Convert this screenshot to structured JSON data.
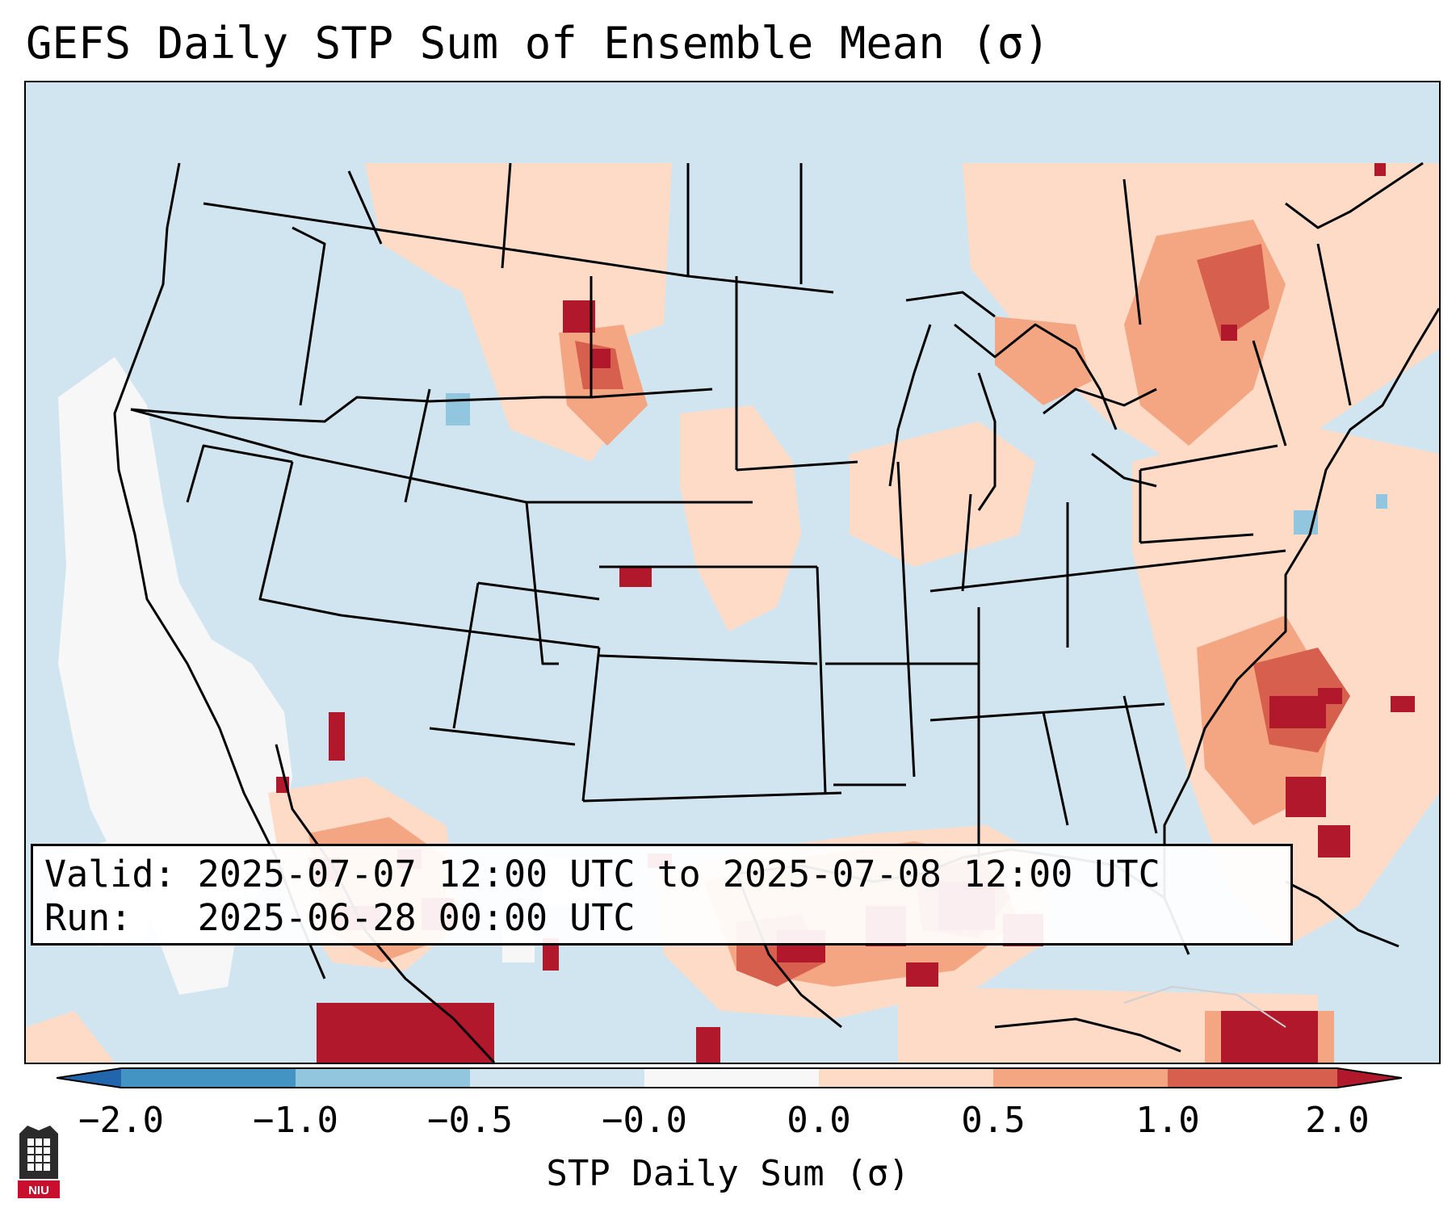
{
  "title": "GEFS Daily STP Sum of Ensemble Mean (σ)",
  "info": {
    "valid_line": "Valid: 2025-07-07 12:00 UTC to 2025-07-08 12:00 UTC",
    "run_line": "Run:   2025-06-28 00:00 UTC"
  },
  "colorbar": {
    "label": "STP Daily Sum (σ)",
    "ticks": [
      "−2.0",
      "−1.0",
      "−0.5",
      "−0.0",
      "0.0",
      "0.5",
      "1.0",
      "2.0"
    ],
    "bins": [
      {
        "range": "-2.0 to -1.0",
        "color": "#4393c3"
      },
      {
        "range": "-1.0 to -0.5",
        "color": "#92c5de"
      },
      {
        "range": "-0.5 to -0.0",
        "color": "#d1e5f0"
      },
      {
        "range": "-0.0 to 0.0",
        "color": "#f7f7f7"
      },
      {
        "range": "0.0 to 0.5",
        "color": "#fddbc7"
      },
      {
        "range": "0.5 to 1.0",
        "color": "#f4a582"
      },
      {
        "range": "1.0 to 2.0",
        "color": "#d6604d"
      }
    ],
    "under_color": "#2166ac",
    "over_color": "#b2182b"
  },
  "logo": {
    "text": "NIU",
    "color": "#c8102e"
  }
}
